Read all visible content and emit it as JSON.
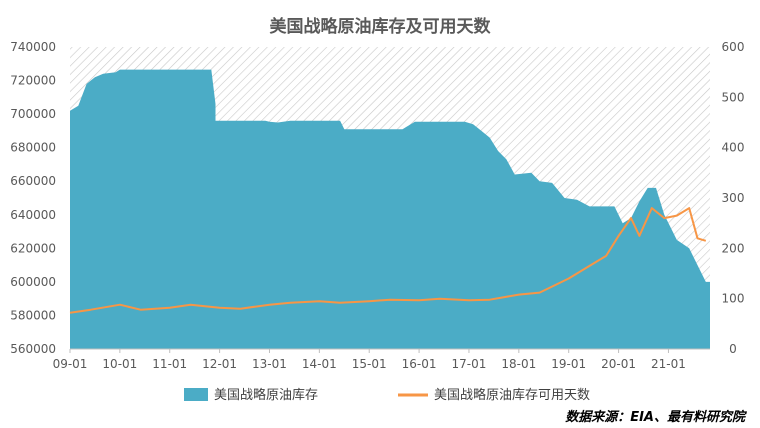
{
  "chart_data": {
    "type": "area+line",
    "title": "美国战略原油库存及可用天数",
    "source": "数据来源：EIA、最有料研究院",
    "x_labels": [
      "09-01",
      "10-01",
      "11-01",
      "12-01",
      "13-01",
      "14-01",
      "15-01",
      "16-01",
      "17-01",
      "18-01",
      "19-01",
      "20-01",
      "21-01"
    ],
    "y_left": {
      "min": 560000,
      "max": 740000,
      "step": 20000
    },
    "y_right": {
      "min": 0,
      "max": 600,
      "step": 100
    },
    "grid": false,
    "legend_position": "bottom",
    "series": [
      {
        "name": "美国战略原油库存",
        "type": "area",
        "axis": "left",
        "color": "#4bacc6",
        "points": [
          [
            "2009-01",
            702000
          ],
          [
            "2009-03",
            705000
          ],
          [
            "2009-05",
            718000
          ],
          [
            "2009-07",
            722000
          ],
          [
            "2009-09",
            724000
          ],
          [
            "2009-12",
            725000
          ],
          [
            "2010-01",
            726500
          ],
          [
            "2011-11",
            726500
          ],
          [
            "2011-12",
            706000
          ],
          [
            "2011-12",
            696000
          ],
          [
            "2012-12",
            696000
          ],
          [
            "2013-01",
            695500
          ],
          [
            "2013-03",
            695000
          ],
          [
            "2013-06",
            696000
          ],
          [
            "2014-06",
            696000
          ],
          [
            "2014-07",
            691000
          ],
          [
            "2015-09",
            691000
          ],
          [
            "2015-12",
            695500
          ],
          [
            "2016-12",
            695500
          ],
          [
            "2017-02",
            694000
          ],
          [
            "2017-04",
            690000
          ],
          [
            "2017-06",
            686000
          ],
          [
            "2017-08",
            678000
          ],
          [
            "2017-10",
            673000
          ],
          [
            "2017-12",
            664000
          ],
          [
            "2018-04",
            665000
          ],
          [
            "2018-06",
            660000
          ],
          [
            "2018-09",
            659000
          ],
          [
            "2018-12",
            650000
          ],
          [
            "2019-03",
            649000
          ],
          [
            "2019-06",
            645000
          ],
          [
            "2019-12",
            645000
          ],
          [
            "2020-02",
            635000
          ],
          [
            "2020-04",
            638000
          ],
          [
            "2020-06",
            648000
          ],
          [
            "2020-08",
            656000
          ],
          [
            "2020-10",
            656000
          ],
          [
            "2020-12",
            640000
          ],
          [
            "2021-03",
            625000
          ],
          [
            "2021-06",
            620000
          ],
          [
            "2021-08",
            610000
          ],
          [
            "2021-10",
            600000
          ]
        ]
      },
      {
        "name": "美国战略原油库存可用天数",
        "type": "line",
        "axis": "right",
        "color": "#f79646",
        "points": [
          [
            "2009-01",
            72
          ],
          [
            "2009-06",
            78
          ],
          [
            "2010-01",
            88
          ],
          [
            "2010-06",
            78
          ],
          [
            "2011-01",
            82
          ],
          [
            "2011-06",
            88
          ],
          [
            "2012-01",
            82
          ],
          [
            "2012-06",
            80
          ],
          [
            "2013-01",
            88
          ],
          [
            "2013-06",
            92
          ],
          [
            "2014-01",
            95
          ],
          [
            "2014-06",
            92
          ],
          [
            "2015-01",
            95
          ],
          [
            "2015-06",
            98
          ],
          [
            "2016-01",
            97
          ],
          [
            "2016-06",
            100
          ],
          [
            "2017-01",
            97
          ],
          [
            "2017-06",
            98
          ],
          [
            "2018-01",
            108
          ],
          [
            "2018-06",
            112
          ],
          [
            "2019-01",
            140
          ],
          [
            "2019-06",
            165
          ],
          [
            "2019-10",
            185
          ],
          [
            "2020-01",
            225
          ],
          [
            "2020-04",
            260
          ],
          [
            "2020-06",
            225
          ],
          [
            "2020-09",
            280
          ],
          [
            "2020-12",
            260
          ],
          [
            "2021-03",
            265
          ],
          [
            "2021-06",
            280
          ],
          [
            "2021-08",
            220
          ],
          [
            "2021-10",
            215
          ]
        ]
      }
    ]
  }
}
